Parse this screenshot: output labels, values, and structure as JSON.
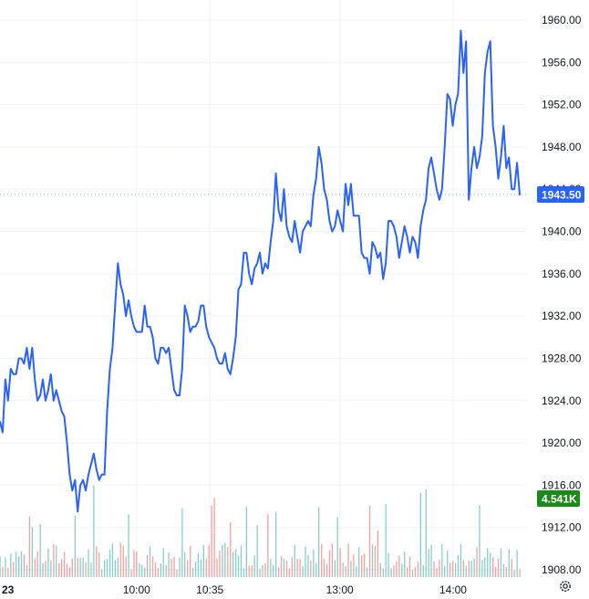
{
  "chart_data": {
    "type": "line",
    "title": "",
    "xlabel": "",
    "ylabel": "",
    "ylim": [
      1907.0,
      1961.0
    ],
    "y_ticks": [
      "1960.00",
      "1956.00",
      "1952.00",
      "1948.00",
      "1944.00",
      "1940.00",
      "1936.00",
      "1932.00",
      "1928.00",
      "1924.00",
      "1920.00",
      "1916.00",
      "1912.00",
      "1908.00"
    ],
    "x_ticks": [
      {
        "label": "23",
        "t": 0
      },
      {
        "label": "10:00",
        "t": 41
      },
      {
        "label": "10:35",
        "t": 63
      },
      {
        "label": "13:00",
        "t": 102
      },
      {
        "label": "14:00",
        "t": 136
      }
    ],
    "x_range": [
      0,
      156
    ],
    "grid": true,
    "last_price": 1943.5,
    "last_price_label": "1943.50",
    "last_volume_label": "4.541K",
    "series": [
      {
        "type": "line",
        "color": "#2962ff",
        "y": [
          1922,
          1921,
          1926,
          1924,
          1927,
          1926.5,
          1926.5,
          1928,
          1928,
          1927.5,
          1929,
          1927,
          1929,
          1926,
          1924,
          1924.5,
          1926,
          1924,
          1925,
          1926.5,
          1924,
          1925,
          1924,
          1923,
          1922.5,
          1920,
          1917,
          1915.5,
          1916.5,
          1913.5,
          1916,
          1916.5,
          1915.5,
          1917,
          1918,
          1919,
          1917.5,
          1916.5,
          1917,
          1917,
          1923,
          1927,
          1929,
          1933,
          1937,
          1935,
          1934,
          1932,
          1933.5,
          1932,
          1931,
          1930.5,
          1930.5,
          1930.5,
          1933,
          1931,
          1931,
          1930,
          1928,
          1927.5,
          1929,
          1929,
          1928.5,
          1929,
          1927,
          1925,
          1924.5,
          1924.5,
          1927,
          1933,
          1932,
          1930.5,
          1931,
          1931,
          1931.5,
          1933,
          1933,
          1931,
          1930,
          1929.5,
          1929,
          1928,
          1927.5,
          1927.5,
          1928.5,
          1927,
          1926.5,
          1928,
          1930,
          1934.5,
          1935,
          1938,
          1938,
          1936,
          1935,
          1936.5,
          1937,
          1938,
          1936,
          1937,
          1936.5,
          1939,
          1941,
          1945.5,
          1942,
          1941,
          1944,
          1940.5,
          1939.5,
          1939,
          1941,
          1939.5,
          1938,
          1940,
          1940.5,
          1941,
          1940.5,
          1943.5,
          1945,
          1948,
          1946.5,
          1944,
          1943,
          1941,
          1940,
          1940.5,
          1942,
          1941,
          1940,
          1944.5,
          1942.5,
          1944.5,
          1941.5,
          1941.5,
          1941.5,
          1938,
          1937.5,
          1937.5,
          1936,
          1939,
          1938.5,
          1937.5,
          1938,
          1935.5,
          1937,
          1941,
          1941,
          1940.5,
          1939.5,
          1937.5,
          1939,
          1940.5,
          1939.5,
          1938,
          1939.5,
          1939,
          1937.5,
          1940.5,
          1942,
          1943,
          1946,
          1947,
          1945.5,
          1944,
          1943,
          1944,
          1948,
          1953,
          1952.5,
          1950,
          1952,
          1953,
          1959,
          1955,
          1958,
          1943,
          1946,
          1948,
          1946,
          1947,
          1949,
          1955,
          1957,
          1958,
          1950,
          1948,
          1945,
          1947,
          1950,
          1946,
          1947,
          1944,
          1944,
          1946.5,
          1943.5
        ]
      },
      {
        "type": "volume",
        "colors": {
          "up": "#26a69a",
          "down": "#ef5350"
        }
      }
    ]
  }
}
